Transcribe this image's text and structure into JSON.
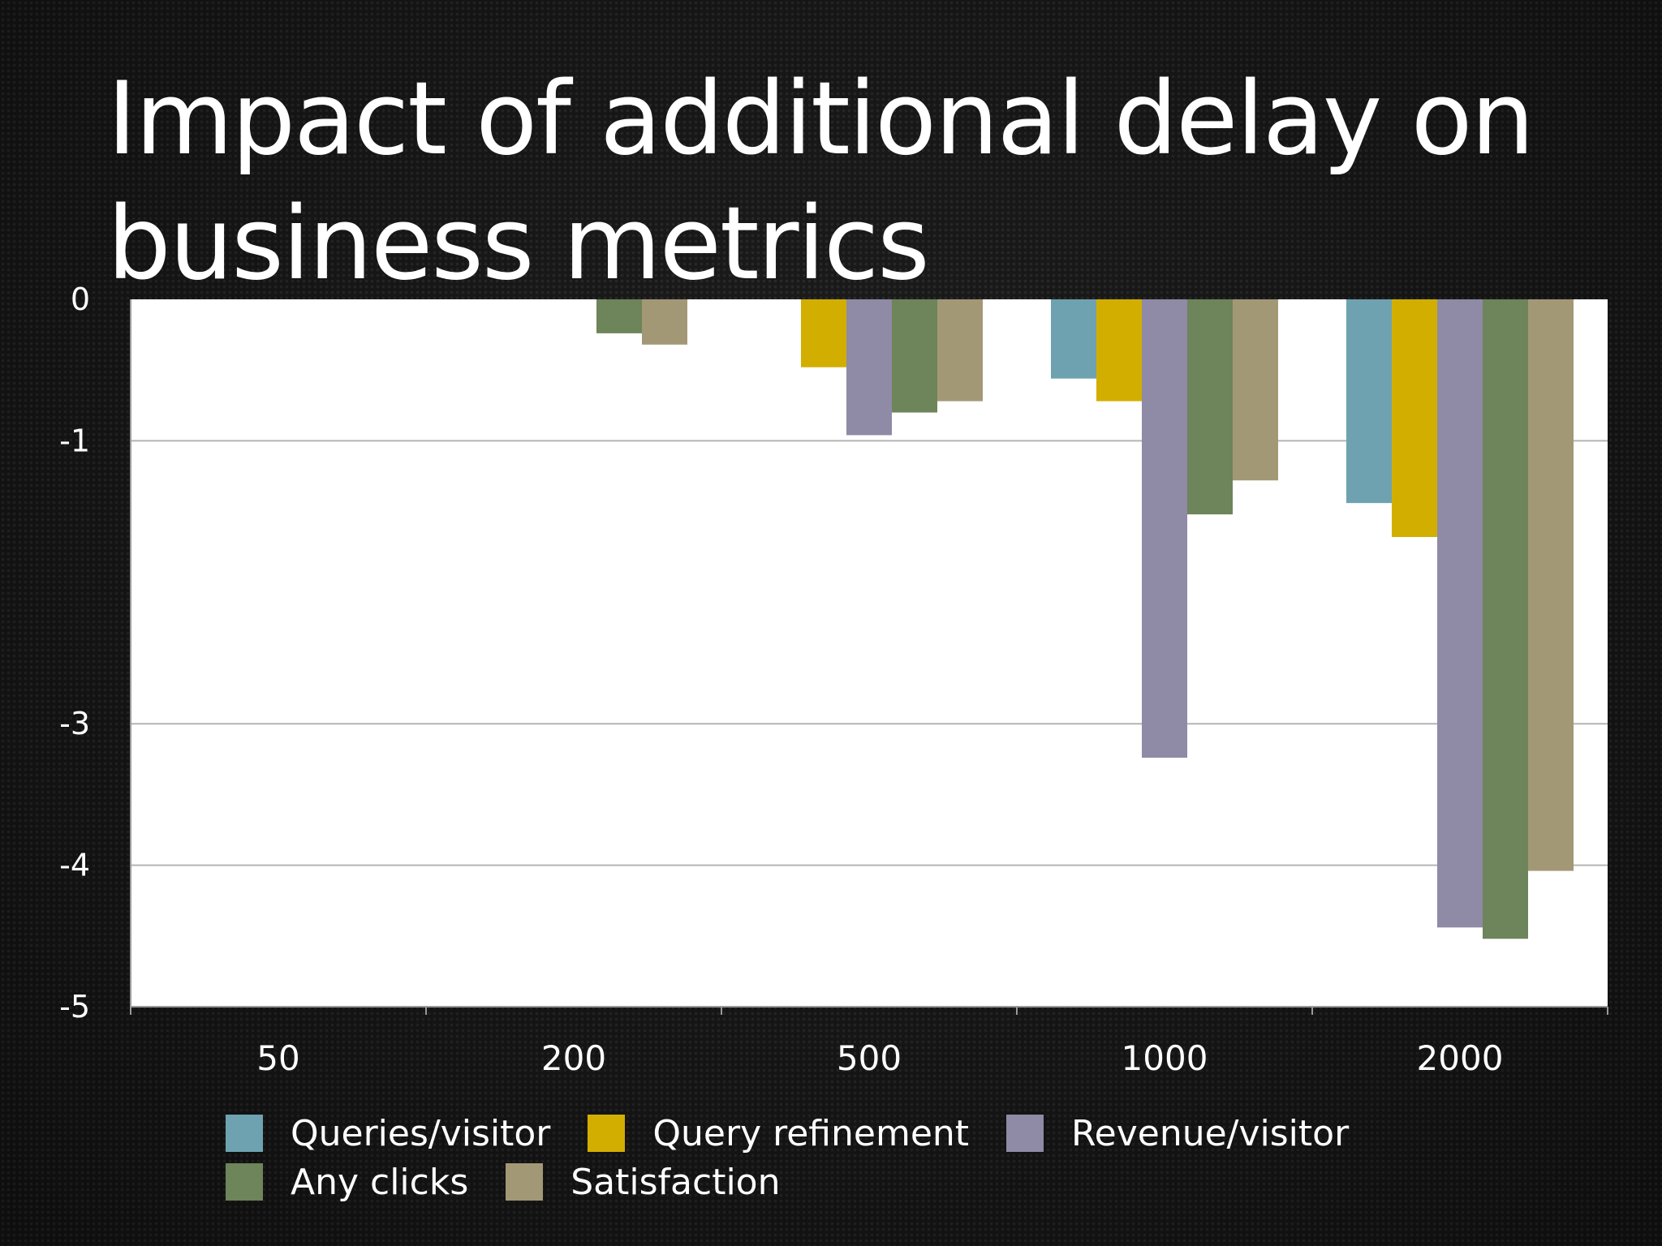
{
  "chart_data": {
    "type": "bar",
    "title": "Impact of additional delay on business metrics",
    "xlabel": "",
    "ylabel": "",
    "categories": [
      "50",
      "200",
      "500",
      "1000",
      "2000"
    ],
    "y_ticks": [
      0,
      -1,
      -3,
      -4,
      -5
    ],
    "ylim": [
      -5,
      0
    ],
    "grid": true,
    "legend_position": "bottom",
    "series": [
      {
        "name": "Queries/visitor",
        "color": "#6ea2b0",
        "values": [
          0,
          0,
          0,
          -0.56,
          -1.44
        ]
      },
      {
        "name": "Query refinement",
        "color": "#d2ae00",
        "values": [
          0,
          0,
          -0.48,
          -0.72,
          -1.68
        ]
      },
      {
        "name": "Revenue/visitor",
        "color": "#8f8aa6",
        "values": [
          0,
          0,
          -0.96,
          -3.24,
          -4.44
        ]
      },
      {
        "name": "Any clicks",
        "color": "#6e845a",
        "values": [
          0,
          -0.24,
          -0.8,
          -1.52,
          -4.52
        ]
      },
      {
        "name": "Satisfaction",
        "color": "#a39876",
        "values": [
          0,
          -0.32,
          -0.72,
          -1.28,
          -4.04
        ]
      }
    ]
  }
}
